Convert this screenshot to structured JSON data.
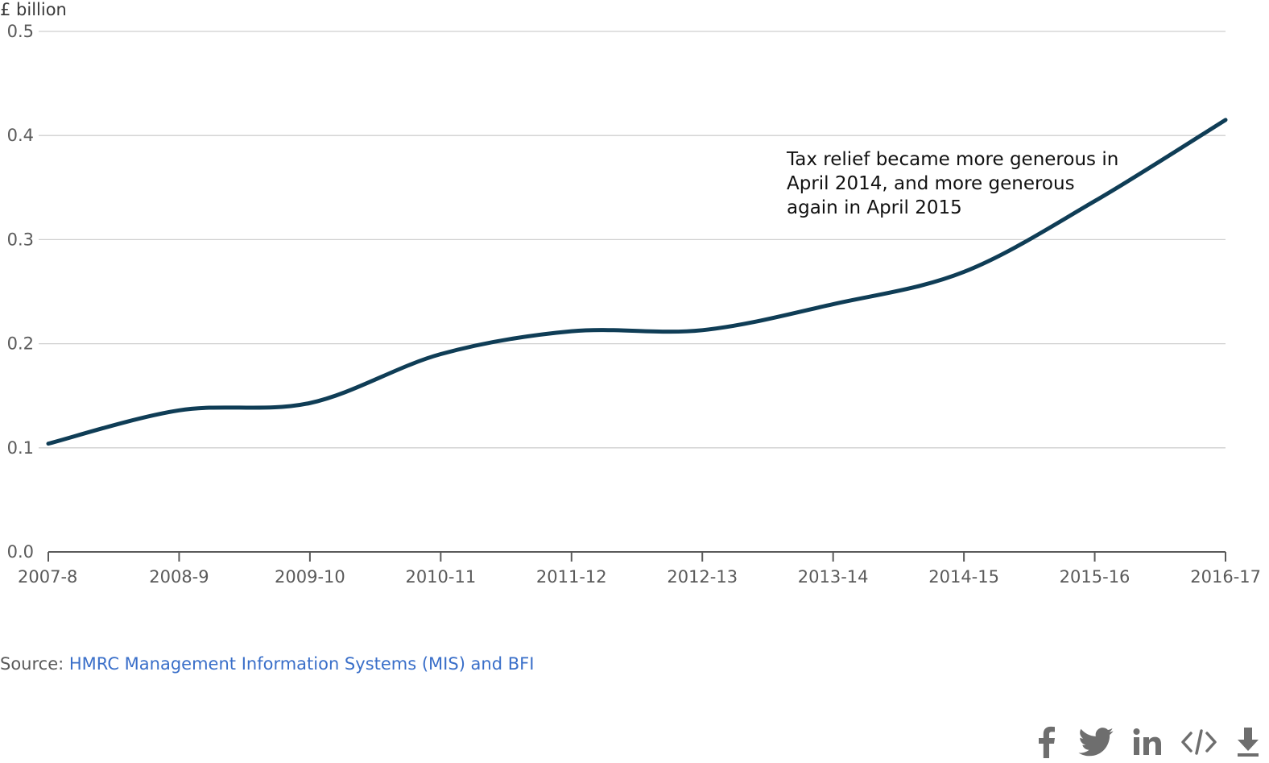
{
  "chart_data": {
    "type": "line",
    "ylabel": "£ billion",
    "ylim": [
      0,
      0.5
    ],
    "yticks": [
      "0.0",
      "0.1",
      "0.2",
      "0.3",
      "0.4",
      "0.5"
    ],
    "categories": [
      "2007-8",
      "2008-9",
      "2009-10",
      "2010-11",
      "2011-12",
      "2012-13",
      "2013-14",
      "2014-15",
      "2015-16",
      "2016-17"
    ],
    "values": [
      0.104,
      0.136,
      0.143,
      0.19,
      0.212,
      0.213,
      0.238,
      0.269,
      0.337,
      0.415
    ],
    "grid": true,
    "series_color": "#0f3d56",
    "annotation": {
      "lines": [
        "Tax relief became more generous in",
        "April 2014, and more generous",
        "again in April 2015"
      ]
    }
  },
  "source": {
    "prefix": "Source: ",
    "link_text": "HMRC Management Information Systems (MIS) and BFI"
  },
  "share_icons": [
    "facebook-icon",
    "twitter-icon",
    "linkedin-icon",
    "embed-code-icon",
    "download-icon"
  ]
}
